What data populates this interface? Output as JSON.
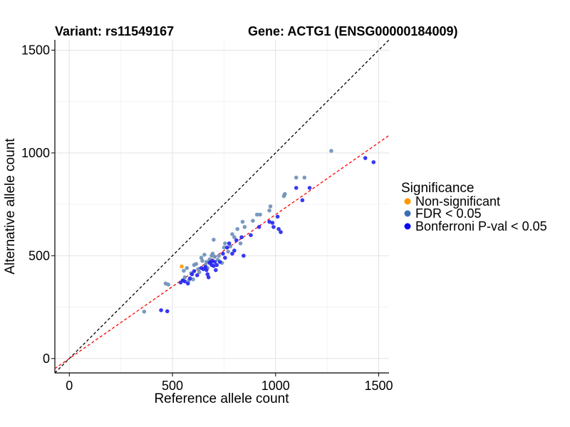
{
  "titles": {
    "variant": "Variant: rs11549167",
    "gene": "Gene: ACTG1 (ENSG00000184009)"
  },
  "axes": {
    "xlabel": "Reference allele count",
    "ylabel": "Alternative allele count"
  },
  "legend": {
    "title": "Significance",
    "items": [
      {
        "label": "Non-significant",
        "color": "#FF9900"
      },
      {
        "label": "FDR < 0.05",
        "color": "#3B6FB0"
      },
      {
        "label": "Bonferroni P-val < 0.05",
        "color": "#0A0AF0"
      }
    ]
  },
  "chart_data": {
    "type": "scatter",
    "xlim": [
      -70,
      1550
    ],
    "ylim": [
      -70,
      1550
    ],
    "x_ticks": [
      0,
      500,
      1000,
      1500
    ],
    "y_ticks": [
      0,
      500,
      1000,
      1500
    ],
    "grid": true,
    "legend_position": "right",
    "reference_lines": [
      {
        "name": "identity",
        "slope": 1.0,
        "intercept": 0,
        "color": "#000000",
        "style": "dashed"
      },
      {
        "name": "fit",
        "slope": 0.7,
        "intercept": 0,
        "color": "#FF0000",
        "style": "dashed"
      }
    ],
    "series": [
      {
        "name": "Non-significant",
        "color": "#FF9900",
        "points": [
          [
            545,
            448
          ]
        ]
      },
      {
        "name": "FDR < 0.05",
        "color": "#6B8FB8",
        "points": [
          [
            363,
            228
          ],
          [
            467,
            365
          ],
          [
            480,
            360
          ],
          [
            555,
            427
          ],
          [
            560,
            395
          ],
          [
            570,
            440
          ],
          [
            580,
            380
          ],
          [
            590,
            415
          ],
          [
            600,
            385
          ],
          [
            605,
            455
          ],
          [
            615,
            460
          ],
          [
            625,
            435
          ],
          [
            630,
            420
          ],
          [
            640,
            490
          ],
          [
            645,
            475
          ],
          [
            655,
            505
          ],
          [
            660,
            455
          ],
          [
            665,
            470
          ],
          [
            670,
            440
          ],
          [
            680,
            482
          ],
          [
            690,
            500
          ],
          [
            695,
            510
          ],
          [
            700,
            578
          ],
          [
            705,
            495
          ],
          [
            720,
            480
          ],
          [
            725,
            500
          ],
          [
            740,
            465
          ],
          [
            750,
            540
          ],
          [
            755,
            560
          ],
          [
            770,
            520
          ],
          [
            780,
            545
          ],
          [
            790,
            605
          ],
          [
            800,
            590
          ],
          [
            815,
            630
          ],
          [
            830,
            560
          ],
          [
            840,
            665
          ],
          [
            850,
            640
          ],
          [
            890,
            670
          ],
          [
            910,
            700
          ],
          [
            925,
            700
          ],
          [
            970,
            720
          ],
          [
            975,
            740
          ],
          [
            1040,
            790
          ],
          [
            1045,
            800
          ],
          [
            1100,
            880
          ],
          [
            1140,
            880
          ],
          [
            1270,
            1010
          ]
        ]
      },
      {
        "name": "Bonferroni P-val < 0.05",
        "color": "#2424F0",
        "points": [
          [
            445,
            235
          ],
          [
            475,
            230
          ],
          [
            540,
            370
          ],
          [
            550,
            380
          ],
          [
            560,
            375
          ],
          [
            575,
            365
          ],
          [
            585,
            390
          ],
          [
            595,
            410
          ],
          [
            605,
            425
          ],
          [
            620,
            405
          ],
          [
            640,
            440
          ],
          [
            650,
            435
          ],
          [
            660,
            445
          ],
          [
            665,
            430
          ],
          [
            670,
            410
          ],
          [
            675,
            395
          ],
          [
            680,
            465
          ],
          [
            685,
            470
          ],
          [
            690,
            455
          ],
          [
            695,
            475
          ],
          [
            700,
            450
          ],
          [
            705,
            470
          ],
          [
            710,
            430
          ],
          [
            715,
            455
          ],
          [
            730,
            470
          ],
          [
            745,
            510
          ],
          [
            755,
            490
          ],
          [
            765,
            540
          ],
          [
            775,
            560
          ],
          [
            790,
            510
          ],
          [
            800,
            525
          ],
          [
            810,
            575
          ],
          [
            835,
            590
          ],
          [
            845,
            500
          ],
          [
            880,
            600
          ],
          [
            920,
            640
          ],
          [
            970,
            665
          ],
          [
            985,
            660
          ],
          [
            990,
            640
          ],
          [
            1010,
            690
          ],
          [
            1015,
            630
          ],
          [
            1025,
            615
          ],
          [
            1100,
            830
          ],
          [
            1130,
            770
          ],
          [
            1165,
            830
          ],
          [
            1435,
            975
          ],
          [
            1475,
            955
          ]
        ]
      }
    ]
  }
}
